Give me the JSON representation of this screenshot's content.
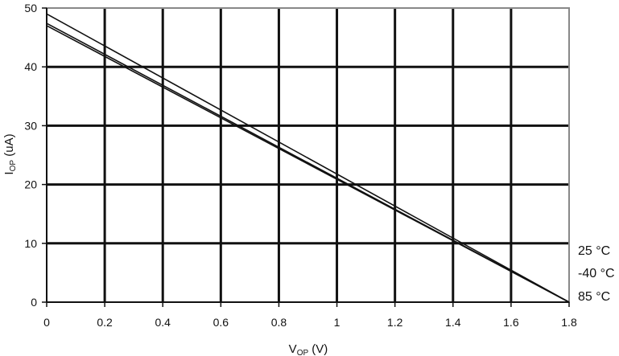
{
  "chart_data": {
    "type": "line",
    "xlabel": {
      "main": "V",
      "sub": "OP",
      "unit": " (V)"
    },
    "ylabel": {
      "main": "I",
      "sub": "OP",
      "unit": " (uA)"
    },
    "xlim": [
      0,
      1.8
    ],
    "ylim": [
      0,
      50
    ],
    "x_ticks": [
      "0",
      "0.2",
      "0.4",
      "0.6",
      "0.8",
      "1",
      "1.2",
      "1.4",
      "1.6",
      "1.8"
    ],
    "x_tick_values": [
      0,
      0.2,
      0.4,
      0.6,
      0.8,
      1.0,
      1.2,
      1.4,
      1.6,
      1.8
    ],
    "y_ticks": [
      "0",
      "10",
      "20",
      "30",
      "40",
      "50"
    ],
    "y_tick_values": [
      0,
      10,
      20,
      30,
      40,
      50
    ],
    "grid": true,
    "legend_placement": "right",
    "series": [
      {
        "name": "25 °C",
        "x": [
          0,
          1.8
        ],
        "y": [
          49,
          0
        ]
      },
      {
        "name": "-40 °C",
        "x": [
          0,
          1.8
        ],
        "y": [
          47.4,
          0
        ]
      },
      {
        "name": "85 °C",
        "x": [
          0,
          1.8
        ],
        "y": [
          47,
          0
        ]
      }
    ],
    "colors": {
      "line": "#111111",
      "grid": "#111111",
      "frame": "#888888"
    }
  }
}
